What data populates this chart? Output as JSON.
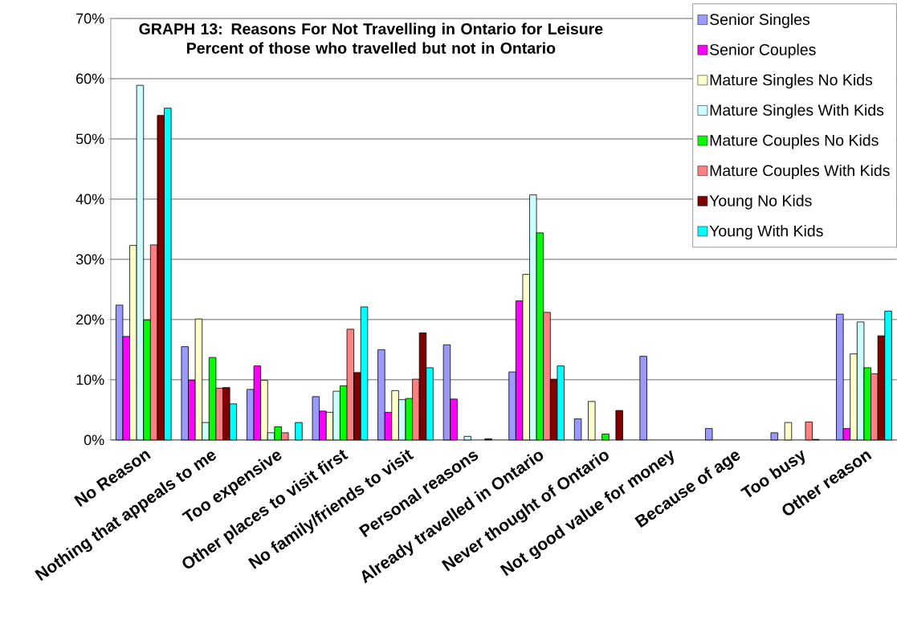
{
  "chart_data": {
    "type": "bar",
    "title": "GRAPH 13: Reasons For Not Travelling in Ontario for Leisure",
    "subtitle": "Percent of those who travelled but not in Ontario",
    "categories": [
      "No Reason",
      "Nothing that appeals to me",
      "Too expensive",
      "Other places to visit first",
      "No family/friends to visit",
      "Personal reasons",
      "Already travelled in Ontario",
      "Never thought of Ontario",
      "Not good value for money",
      "Because of age",
      "Too busy",
      "Other reason"
    ],
    "series": [
      {
        "name": "Senior Singles",
        "color": "#9999ff",
        "values": [
          22.4,
          15.5,
          8.4,
          7.2,
          15.0,
          15.8,
          11.3,
          3.5,
          13.9,
          1.9,
          1.2,
          20.9
        ]
      },
      {
        "name": "Senior Couples",
        "color": "#ff00ff",
        "values": [
          17.2,
          9.9,
          12.3,
          4.8,
          4.6,
          6.8,
          23.1,
          null,
          null,
          null,
          null,
          1.9
        ]
      },
      {
        "name": "Mature Singles No Kids",
        "color": "#ffffcc",
        "values": [
          32.3,
          20.1,
          9.9,
          4.6,
          8.2,
          null,
          27.5,
          6.4,
          null,
          null,
          2.9,
          14.3
        ]
      },
      {
        "name": "Mature Singles With Kids",
        "color": "#ccffff",
        "values": [
          58.9,
          2.9,
          1.2,
          8.1,
          6.7,
          0.6,
          40.7,
          null,
          null,
          null,
          null,
          19.6
        ]
      },
      {
        "name": "Mature Couples No Kids",
        "color": "#00ff00",
        "values": [
          19.9,
          13.7,
          2.2,
          9.0,
          6.9,
          null,
          34.4,
          1.0,
          null,
          null,
          null,
          12.0
        ]
      },
      {
        "name": "Mature Couples With Kids",
        "color": "#ff8080",
        "values": [
          32.4,
          8.6,
          1.2,
          18.4,
          10.1,
          null,
          21.2,
          null,
          null,
          null,
          3.0,
          11.0
        ]
      },
      {
        "name": "Young No Kids",
        "color": "#800000",
        "values": [
          53.9,
          8.7,
          null,
          11.2,
          17.8,
          0.2,
          10.1,
          4.9,
          null,
          null,
          0.1,
          17.3
        ]
      },
      {
        "name": "Young With Kids",
        "color": "#00ffff",
        "values": [
          55.1,
          6.0,
          2.9,
          22.1,
          12.0,
          null,
          12.3,
          null,
          null,
          null,
          null,
          21.4
        ]
      }
    ],
    "ylim": [
      0,
      70
    ],
    "yticks": [
      {
        "value": 0,
        "label": "0%"
      },
      {
        "value": 10,
        "label": "10%"
      },
      {
        "value": 20,
        "label": "20%"
      },
      {
        "value": 30,
        "label": "30%"
      },
      {
        "value": 40,
        "label": "40%"
      },
      {
        "value": 50,
        "label": "50%"
      },
      {
        "value": 60,
        "label": "60%"
      },
      {
        "value": 70,
        "label": "70%"
      }
    ],
    "grid": "y",
    "legend": "top right"
  }
}
